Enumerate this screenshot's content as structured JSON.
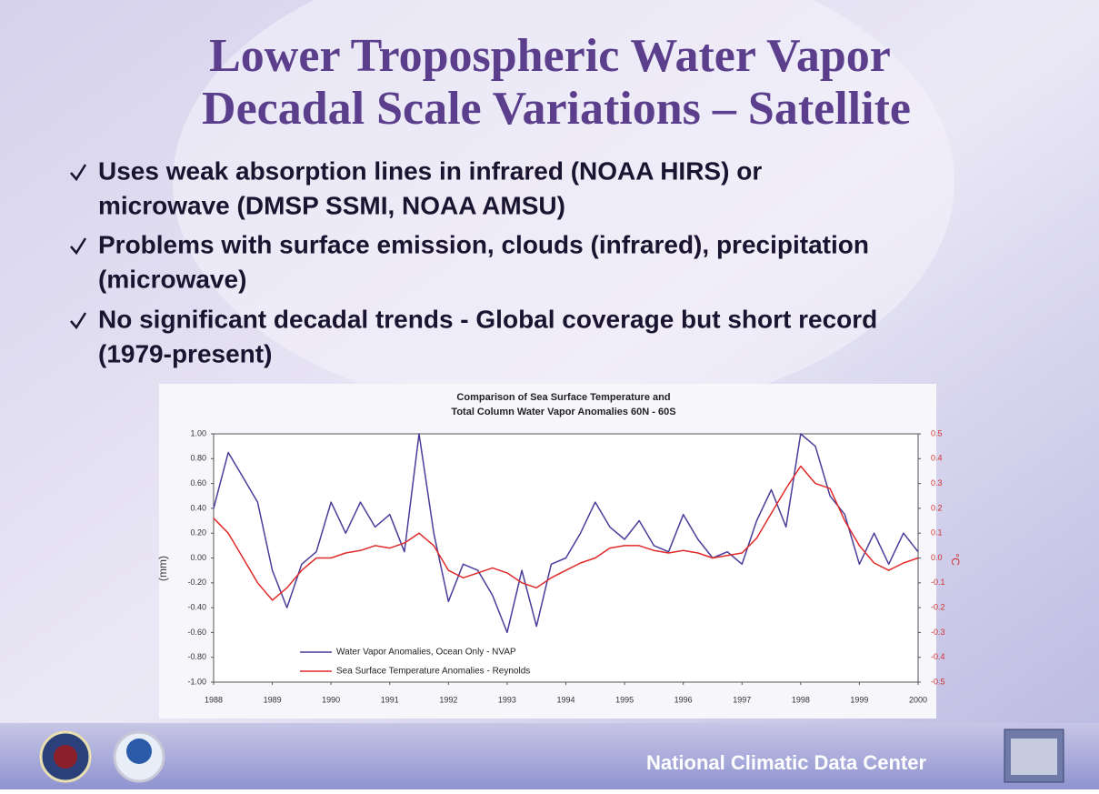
{
  "slide": {
    "title": [
      "Lower Tropospheric Water Vapor",
      "Decadal Scale Variations – Satellite"
    ],
    "bullets": [
      [
        "Uses weak absorption lines in infrared (NOAA HIRS) or",
        "microwave (DMSP SSMI, NOAA AMSU)"
      ],
      [
        "Problems with surface emission, clouds (infrared), precipitation",
        "(microwave)"
      ],
      [
        "No significant decadal trends - Global coverage but short record",
        "(1979-present)"
      ]
    ],
    "footer": "National Climatic Data Center"
  },
  "chart_data": {
    "type": "line",
    "title": [
      "Comparison of Sea Surface Temperature and",
      "Total Column Water Vapor Anomalies   60N - 60S"
    ],
    "y_label": "(mm)",
    "y2_label": "°C",
    "x": [
      1988,
      1988.25,
      1988.5,
      1988.75,
      1989,
      1989.25,
      1989.5,
      1989.75,
      1990,
      1990.25,
      1990.5,
      1990.75,
      1991,
      1991.25,
      1991.5,
      1991.75,
      1992,
      1992.25,
      1992.5,
      1992.75,
      1993,
      1993.25,
      1993.5,
      1993.75,
      1994,
      1994.25,
      1994.5,
      1994.75,
      1995,
      1995.25,
      1995.5,
      1995.75,
      1996,
      1996.25,
      1996.5,
      1996.75,
      1997,
      1997.25,
      1997.5,
      1997.75,
      1998,
      1998.25,
      1998.5,
      1998.75,
      1999,
      1999.25,
      1999.5,
      1999.75,
      2000
    ],
    "series": [
      {
        "name": "Water Vapor Anomalies, Ocean Only - NVAP",
        "color": "#4a3d9a",
        "values": [
          0.4,
          0.85,
          0.65,
          0.45,
          -0.1,
          -0.4,
          -0.05,
          0.05,
          0.45,
          0.2,
          0.45,
          0.25,
          0.35,
          0.05,
          1.0,
          0.2,
          -0.35,
          -0.05,
          -0.1,
          -0.3,
          -0.6,
          -0.1,
          -0.55,
          -0.05,
          0.0,
          0.2,
          0.45,
          0.25,
          0.15,
          0.3,
          0.1,
          0.05,
          0.35,
          0.15,
          0.0,
          0.05,
          -0.05,
          0.3,
          0.55,
          0.25,
          1.0,
          0.9,
          0.5,
          0.35,
          -0.05,
          0.2,
          -0.05,
          0.2,
          0.05
        ]
      },
      {
        "name": "Sea Surface Temperature Anomalies - Reynolds",
        "color": "#e02a2a",
        "axis": "y2",
        "values": [
          0.16,
          0.1,
          0.0,
          -0.1,
          -0.17,
          -0.12,
          -0.05,
          0.0,
          0.0,
          0.02,
          0.03,
          0.05,
          0.04,
          0.06,
          0.1,
          0.05,
          -0.05,
          -0.08,
          -0.06,
          -0.04,
          -0.06,
          -0.1,
          -0.12,
          -0.08,
          -0.05,
          -0.02,
          0.0,
          0.04,
          0.05,
          0.05,
          0.03,
          0.02,
          0.03,
          0.02,
          0.0,
          0.01,
          0.02,
          0.08,
          0.18,
          0.28,
          0.37,
          0.3,
          0.28,
          0.15,
          0.05,
          -0.02,
          -0.05,
          -0.02,
          0.0
        ]
      }
    ],
    "xlim": [
      1988,
      2000
    ],
    "xticks": [
      1988,
      1989,
      1990,
      1991,
      1992,
      1993,
      1994,
      1995,
      1996,
      1997,
      1998,
      1999,
      2000
    ],
    "ylim": [
      -1,
      1
    ],
    "yticks": [
      {
        "value": 1,
        "label": "1.00"
      },
      {
        "value": 0.8,
        "label": "0.80"
      },
      {
        "value": 0.6,
        "label": "0.60"
      },
      {
        "value": 0.4,
        "label": "0.40"
      },
      {
        "value": 0.2,
        "label": "0.20"
      },
      {
        "value": 0,
        "label": "0.00"
      },
      {
        "value": -0.2,
        "label": "-0.20"
      },
      {
        "value": -0.4,
        "label": "-0.40"
      },
      {
        "value": -0.6,
        "label": "-0.60"
      },
      {
        "value": -0.8,
        "label": "-0.80"
      },
      {
        "value": -1,
        "label": "-1.00"
      }
    ],
    "y2lim": [
      -0.5,
      0.5
    ],
    "y2ticks": [
      0.5,
      0.4,
      0.3,
      0.2,
      0.1,
      {
        "value": 0,
        "label": "0.0"
      },
      -0.1,
      -0.2,
      -0.3,
      -0.4,
      -0.5
    ],
    "grid": false
  }
}
